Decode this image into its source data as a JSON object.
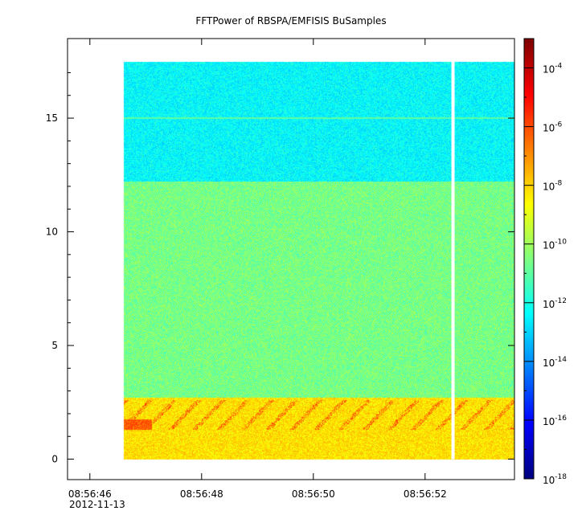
{
  "chart_data": {
    "type": "heatmap",
    "title": "FFTPower of RBSPA/EMFISIS  BuSamples",
    "xlabel": "",
    "ylabel": "",
    "x_tick_labels": [
      "08:56:46",
      "08:56:48",
      "08:56:50",
      "08:56:52"
    ],
    "x_tick_date": "2012-11-13",
    "x_tick_seconds": [
      46,
      48,
      50,
      52
    ],
    "x_data_seconds_range": [
      46.6,
      53.6
    ],
    "x_gap_seconds": 52.5,
    "xlim_seconds": [
      45.6,
      53.6
    ],
    "y_tick_labels": [
      "0",
      "5",
      "10",
      "15"
    ],
    "y_tick_values": [
      0,
      5,
      10,
      15
    ],
    "ylim": [
      -0.9,
      18.5
    ],
    "y_data_range": [
      0,
      17.5
    ],
    "colorbar": {
      "scale": "log",
      "range": [
        1e-18,
        0.001
      ],
      "tick_bases": [
        "10",
        "10",
        "10",
        "10",
        "10",
        "10",
        "10",
        "10"
      ],
      "tick_exponents": [
        "-4",
        "-6",
        "-8",
        "-10",
        "-12",
        "-14",
        "-16",
        "-18"
      ],
      "colormap": [
        "#00007f",
        "#0000ff",
        "#007fff",
        "#00ffff",
        "#7fff7f",
        "#ffff00",
        "#ff7f00",
        "#ff0000",
        "#7f0000"
      ]
    },
    "bands": [
      {
        "y_range": [
          12.2,
          17.5
        ],
        "log_power": -12.4
      },
      {
        "y_range": [
          2.7,
          12.2
        ],
        "log_power": -10.6
      },
      {
        "y_range": [
          0,
          2.7
        ],
        "log_power": -8.2
      }
    ],
    "features": [
      {
        "kind": "narrow-line",
        "y": 15.0,
        "log_power": -11.0
      },
      {
        "kind": "chorus-bursts",
        "y_range": [
          1.3,
          2.6
        ],
        "log_power": -5.5
      }
    ],
    "grid": false
  }
}
